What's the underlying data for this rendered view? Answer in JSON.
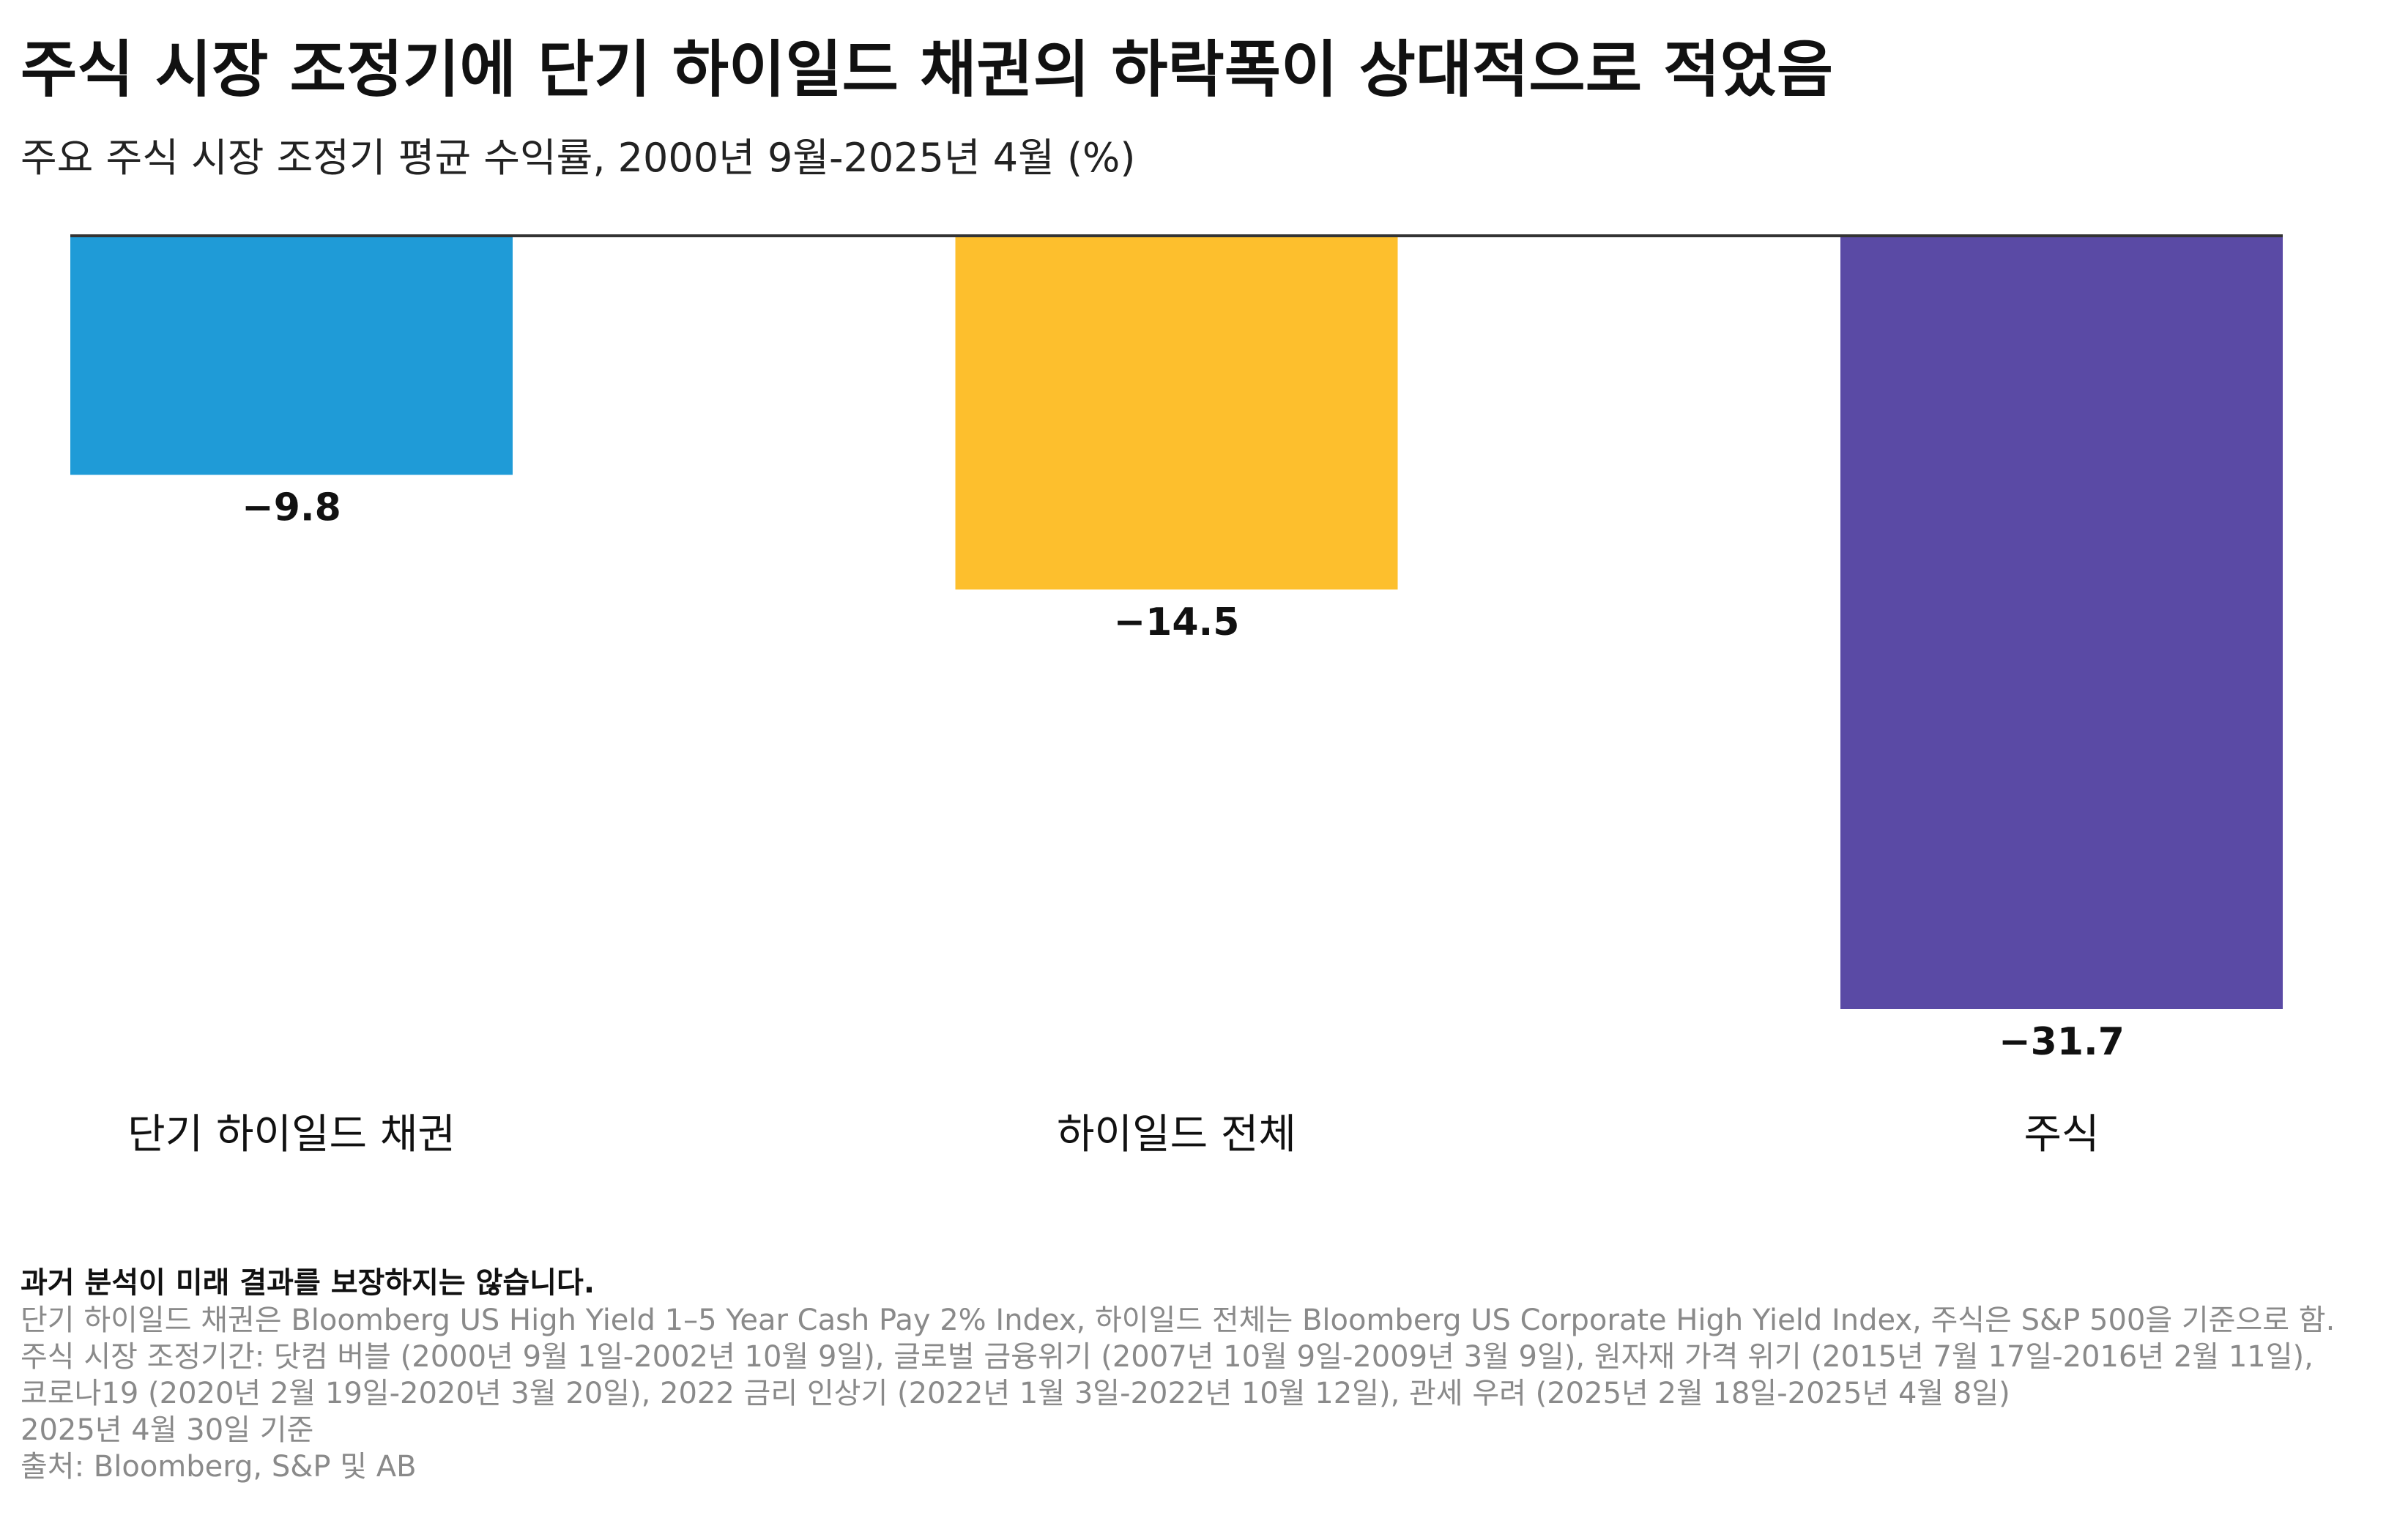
{
  "title": "주식 시장 조정기에 단기 하이일드 채권의 하락폭이 상대적으로 적었음",
  "subtitle": "주요 주식 시장 조정기 평균 수익률, 2000년 9월-2025년 4월 (%)",
  "chart_data": {
    "type": "bar",
    "title": "주식 시장 조정기에 단기 하이일드 채권의 하락폭이 상대적으로 적었음",
    "subtitle": "주요 주식 시장 조정기 평균 수익률, 2000년 9월-2025년 4월 (%)",
    "categories": [
      "단기 하이일드 채권",
      "하이일드 전체",
      "주식"
    ],
    "values": [
      -9.8,
      -14.5,
      -31.7
    ],
    "value_labels": [
      "−9.8",
      "−14.5",
      "−31.7"
    ],
    "colors": [
      "#1f9bd7",
      "#fdbf2d",
      "#5a4aa5"
    ],
    "baseline_color": "#333333",
    "ylim": [
      -31.7,
      0
    ],
    "grid": false,
    "legend": "none"
  },
  "footer": {
    "disclaimer": "과거 분석이 미래 결과를 보장하지는 않습니다.",
    "notes": [
      "단기 하이일드 채권은 Bloomberg US High Yield 1–5 Year Cash Pay 2% Index, 하이일드 전체는 Bloomberg US Corporate High Yield Index, 주식은 S&P 500을 기준으로 함.",
      "주식 시장 조정기간: 닷컴 버블 (2000년 9월 1일-2002년 10월 9일), 글로벌 금융위기 (2007년 10월 9일-2009년 3월 9일), 원자재 가격 위기 (2015년 7월 17일-2016년 2월 11일),",
      "코로나19 (2020년 2월 19일-2020년 3월 20일), 2022 금리 인상기 (2022년 1월 3일-2022년 10월 12일), 관세 우려 (2025년 2월 18일-2025년 4월 8일)",
      "2025년 4월 30일 기준",
      "출처: Bloomberg, S&P 및 AB"
    ]
  }
}
